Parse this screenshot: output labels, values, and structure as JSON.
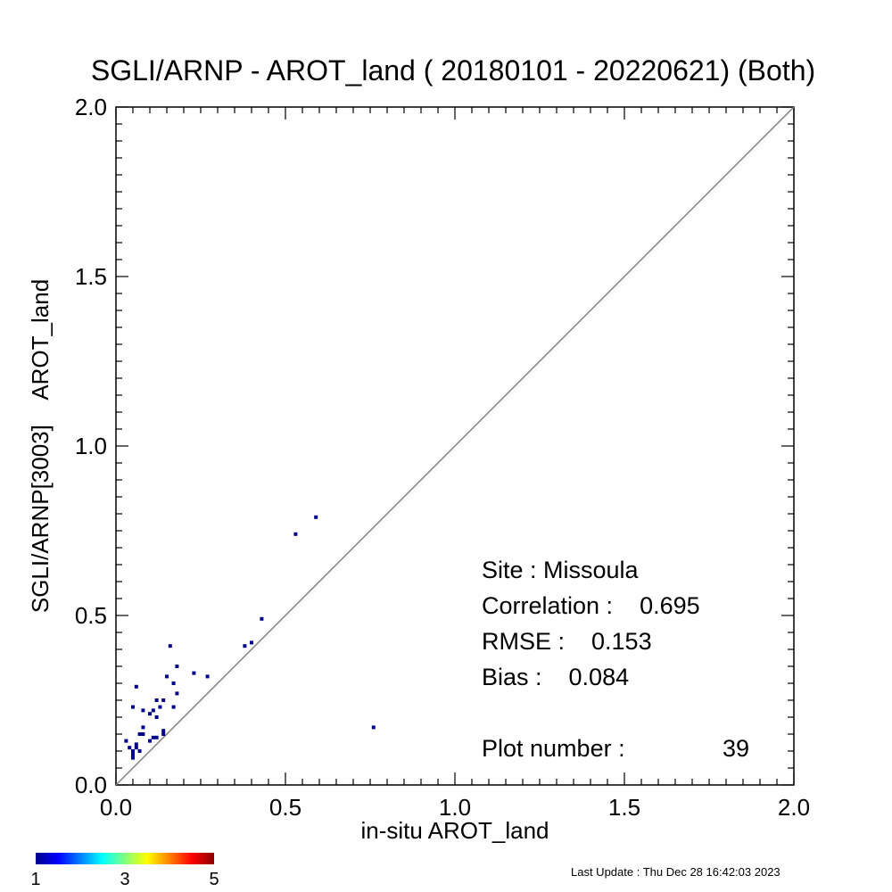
{
  "chart_data": {
    "type": "scatter",
    "title": "SGLI/ARNP - AROT_land ( 20180101 - 20220621) (Both)",
    "xlabel": "in-situ AROT_land",
    "ylabel": "SGLI/ARNP[3003]    AROT_land",
    "xlim": [
      0.0,
      2.0
    ],
    "ylim": [
      0.0,
      2.0
    ],
    "x_ticks": [
      "0.0",
      "0.5",
      "1.0",
      "1.5",
      "2.0"
    ],
    "y_ticks": [
      "0.0",
      "0.5",
      "1.0",
      "1.5",
      "2.0"
    ],
    "reference_line": "1:1",
    "grid": false,
    "point_color": "#00008b",
    "points": [
      [
        0.59,
        0.79
      ],
      [
        0.53,
        0.74
      ],
      [
        0.43,
        0.49
      ],
      [
        0.4,
        0.42
      ],
      [
        0.38,
        0.41
      ],
      [
        0.76,
        0.17
      ],
      [
        0.27,
        0.32
      ],
      [
        0.23,
        0.33
      ],
      [
        0.18,
        0.35
      ],
      [
        0.16,
        0.41
      ],
      [
        0.15,
        0.32
      ],
      [
        0.17,
        0.3
      ],
      [
        0.18,
        0.27
      ],
      [
        0.14,
        0.25
      ],
      [
        0.12,
        0.25
      ],
      [
        0.13,
        0.23
      ],
      [
        0.11,
        0.22
      ],
      [
        0.12,
        0.2
      ],
      [
        0.1,
        0.21
      ],
      [
        0.08,
        0.22
      ],
      [
        0.17,
        0.23
      ],
      [
        0.14,
        0.16
      ],
      [
        0.14,
        0.15
      ],
      [
        0.12,
        0.14
      ],
      [
        0.11,
        0.14
      ],
      [
        0.1,
        0.13
      ],
      [
        0.08,
        0.17
      ],
      [
        0.08,
        0.15
      ],
      [
        0.07,
        0.15
      ],
      [
        0.06,
        0.29
      ],
      [
        0.05,
        0.23
      ],
      [
        0.03,
        0.13
      ],
      [
        0.04,
        0.11
      ],
      [
        0.05,
        0.09
      ],
      [
        0.06,
        0.12
      ],
      [
        0.07,
        0.1
      ],
      [
        0.05,
        0.1
      ],
      [
        0.06,
        0.11
      ],
      [
        0.05,
        0.08
      ]
    ],
    "stats": {
      "site_label": "Site : Missoula",
      "correlation_label": "Correlation :    0.695",
      "rmse_label": "RMSE :    0.153",
      "bias_label": "Bias :    0.084",
      "plot_number_label": "Plot number :",
      "plot_number_value": "39"
    },
    "colorbar": {
      "min_label": "1",
      "mid_label": "3",
      "max_label": "5",
      "colors": [
        "#00008b",
        "#0000ff",
        "#0080ff",
        "#00ffff",
        "#80ff80",
        "#ffff00",
        "#ff8000",
        "#ff0000",
        "#8b0000"
      ]
    }
  },
  "footer": {
    "last_update": "Last Update : Thu Dec 28 16:42:03 2023"
  }
}
